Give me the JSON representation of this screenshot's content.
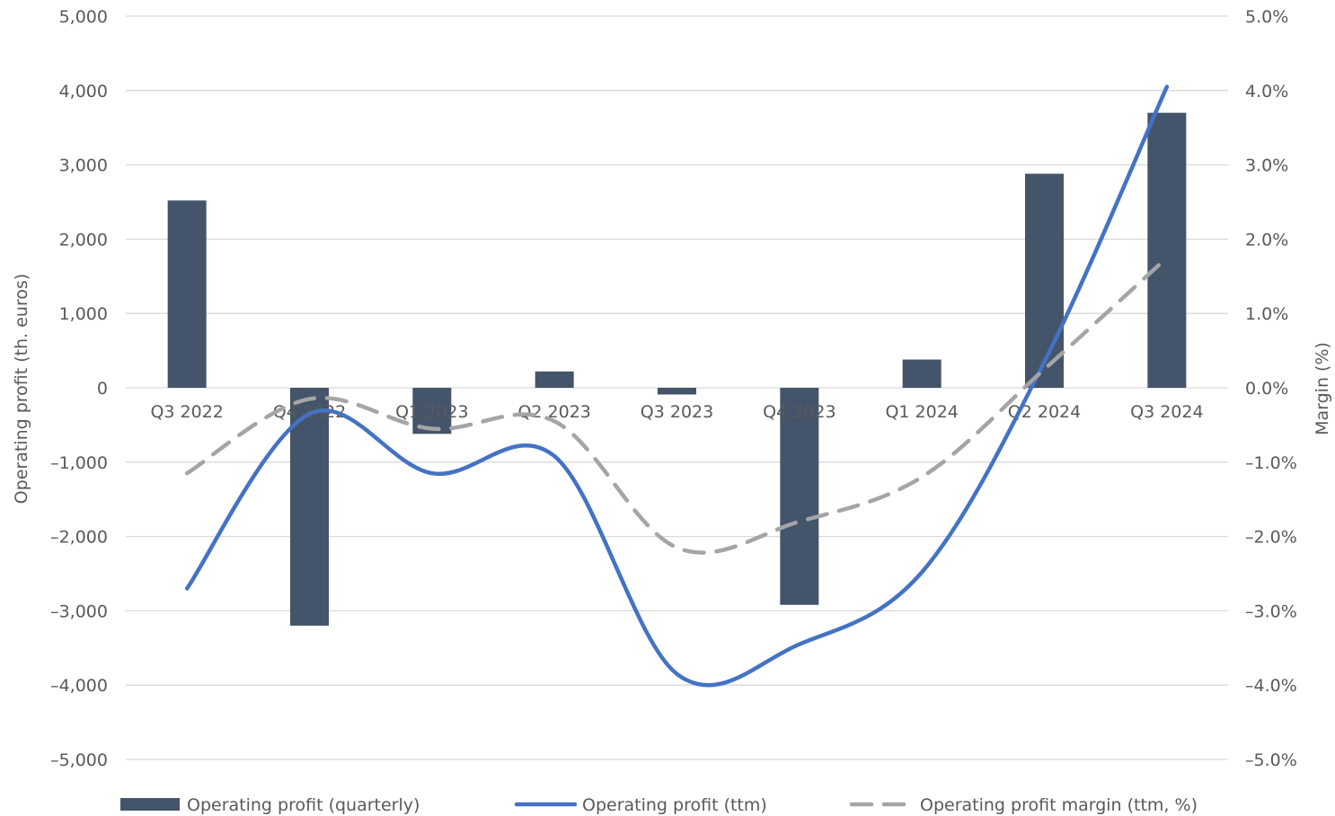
{
  "chart_data": {
    "type": "bar",
    "categories": [
      "Q3 2022",
      "Q4 2022",
      "Q1 2023",
      "Q2 2023",
      "Q3 2023",
      "Q4 2023",
      "Q1 2024",
      "Q2 2024",
      "Q3 2024"
    ],
    "series": [
      {
        "name": "Operating profit (quarterly)",
        "type": "bar",
        "axis": "left",
        "color": "#44546A",
        "values": [
          2520,
          -3200,
          -620,
          220,
          -90,
          -2920,
          380,
          2880,
          3700
        ]
      },
      {
        "name": "Operating profit (ttm)",
        "type": "line",
        "axis": "left",
        "color": "#4472C4",
        "values": [
          -2700,
          -350,
          -1150,
          -920,
          -3850,
          -3450,
          -2480,
          350,
          4050
        ]
      },
      {
        "name": "Operating profit margin (ttm, %)",
        "type": "line",
        "dash": "dashed",
        "axis": "right",
        "color": "#A5A5A5",
        "values": [
          -1.15,
          -0.15,
          -0.55,
          -0.45,
          -2.15,
          -1.8,
          -1.2,
          0.25,
          1.75
        ]
      }
    ],
    "ylabel": "Operating profit (th. euros)",
    "y2label": "Margin (%)",
    "ylim": [
      -5000,
      5000
    ],
    "y2lim": [
      -5.0,
      5.0
    ],
    "yticks": [
      "5,000",
      "4,000",
      "3,000",
      "2,000",
      "1,000",
      "0",
      "–1,000",
      "–2,000",
      "–3,000",
      "–4,000",
      "–5,000"
    ],
    "y2ticks": [
      "5.0%",
      "4.0%",
      "3.0%",
      "2.0%",
      "1.0%",
      "0.0%",
      "–1.0%",
      "–2.0%",
      "–3.0%",
      "–4.0%",
      "–5.0%"
    ],
    "grid": true,
    "legend_position": "bottom"
  }
}
